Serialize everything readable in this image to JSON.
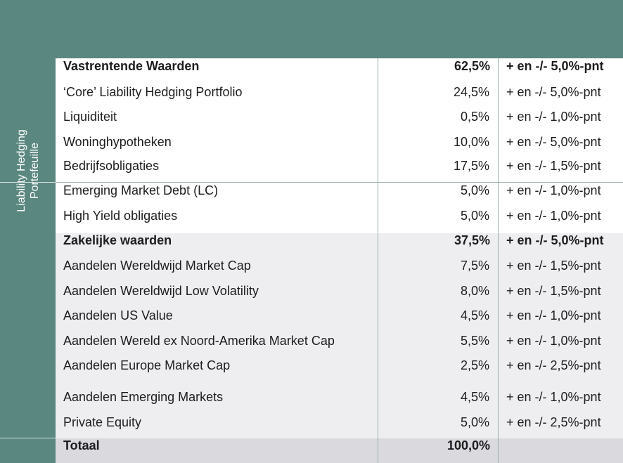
{
  "side_label": {
    "line1": "Liability Hedging",
    "line2": "Portefeuille"
  },
  "rows": [
    {
      "name": "Vastrentende Waarden",
      "pct": "62,5%",
      "range": "+ en -/- 5,0%-pnt"
    },
    {
      "name": "‘Core’ Liability Hedging Portfolio",
      "value": "24,5%",
      "range": "+ en -/- 5,0%-pnt"
    },
    {
      "name": "Liquiditeit",
      "value": "0,5%",
      "range": "+ en -/- 1,0%-pnt"
    },
    {
      "name": "Woninghypotheken",
      "value": "10,0%",
      "range": "+ en -/- 5,0%-pnt"
    },
    {
      "name": "Bedrijfsobligaties",
      "value": "17,5%",
      "range": "+ en -/- 1,5%-pnt"
    },
    {
      "name": "Emerging Market Debt (LC)",
      "value": "5,0%",
      "range": "+ en -/- 1,0%-pnt"
    },
    {
      "name": "High Yield obligaties",
      "value": "5,0%",
      "range": "+ en -/- 1,0%-pnt"
    },
    {
      "name": "Zakelijke waarden",
      "pct": "37,5%",
      "range": "+ en -/- 5,0%-pnt"
    },
    {
      "name": "Aandelen Wereldwijd Market Cap",
      "value": "7,5%",
      "range": "+ en -/- 1,5%-pnt"
    },
    {
      "name": "Aandelen Wereldwijd Low Volatility",
      "value": "8,0%",
      "range": "+ en -/- 1,5%-pnt"
    },
    {
      "name": "Aandelen US Value",
      "value": "4,5%",
      "range": "+ en -/- 1,0%-pnt"
    },
    {
      "name": "Aandelen Wereld ex Noord-Amerika Market Cap",
      "value": "5,5%",
      "range": "+ en -/- 1,0%-pnt"
    },
    {
      "name": "Aandelen Europe Market Cap",
      "value": "2,5%",
      "range": "+ en -/- 2,5%-pnt"
    },
    {
      "name": "Aandelen Emerging Markets",
      "value": "4,5%",
      "range": "+ en -/- 1,0%-pnt"
    },
    {
      "name": "Private Equity",
      "value": "5,0%",
      "range": "+ en -/- 2,5%-pnt"
    },
    {
      "name": "Totaal",
      "pct": "100,0%",
      "range": ""
    }
  ]
}
